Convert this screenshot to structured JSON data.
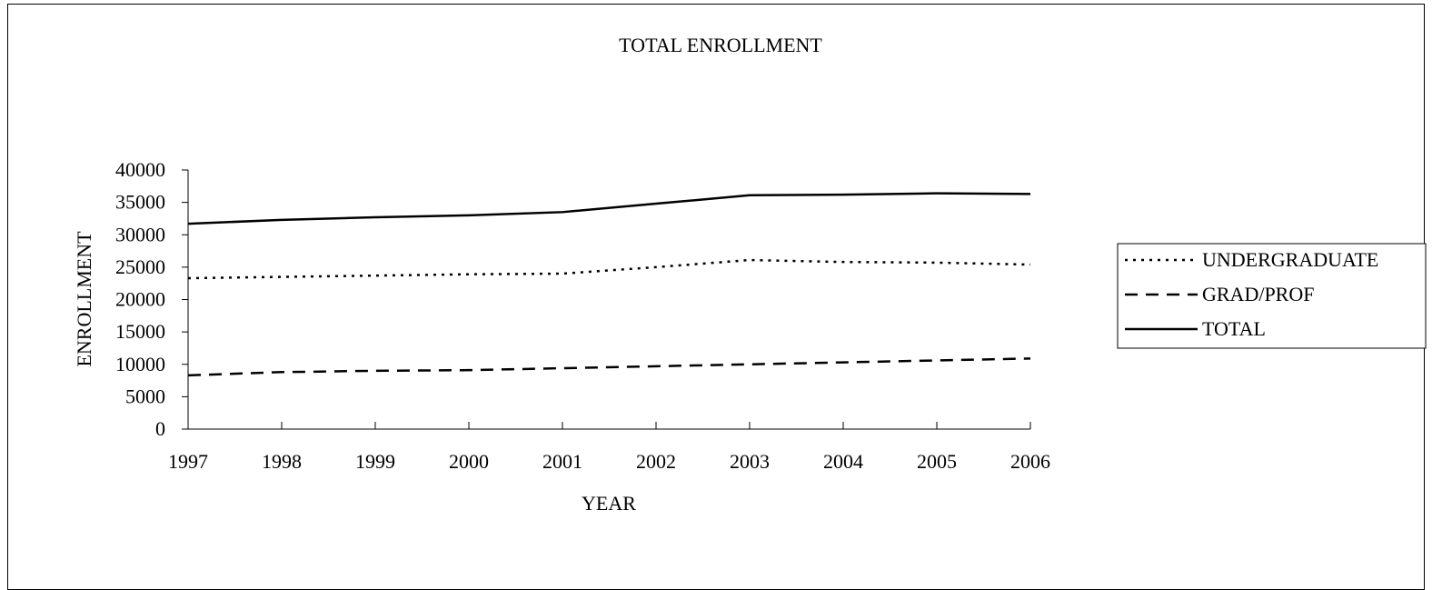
{
  "chart_data": {
    "type": "line",
    "title": "TOTAL ENROLLMENT",
    "xlabel": "YEAR",
    "ylabel": "ENROLLMENT",
    "x": [
      "1997",
      "1998",
      "1999",
      "2000",
      "2001",
      "2002",
      "2003",
      "2004",
      "2005",
      "2006"
    ],
    "ylim": [
      0,
      40000
    ],
    "yticks": [
      0,
      5000,
      10000,
      15000,
      20000,
      25000,
      30000,
      35000,
      40000
    ],
    "grid": false,
    "legend_position": "right",
    "series": [
      {
        "name": "UNDERGRADUATE",
        "style": "dotted",
        "color": "#000000",
        "values": [
          23300,
          23500,
          23700,
          23900,
          24000,
          25000,
          26100,
          25800,
          25700,
          25400
        ]
      },
      {
        "name": "GRAD/PROF",
        "style": "dashed",
        "color": "#000000",
        "values": [
          8300,
          8800,
          9000,
          9100,
          9400,
          9700,
          10000,
          10300,
          10600,
          10900
        ]
      },
      {
        "name": "TOTAL",
        "style": "solid",
        "color": "#000000",
        "values": [
          31700,
          32300,
          32700,
          33000,
          33500,
          34800,
          36100,
          36200,
          36400,
          36300
        ]
      }
    ]
  }
}
